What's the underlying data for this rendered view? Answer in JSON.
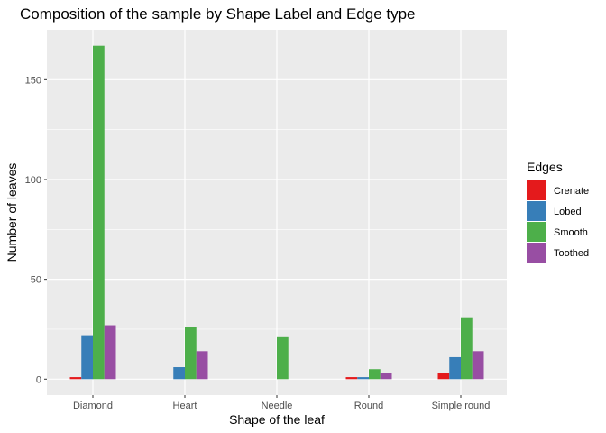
{
  "chart_data": {
    "type": "bar",
    "title": "Composition of the sample by Shape Label and Edge type",
    "xlabel": "Shape of the leaf",
    "ylabel": "Number of leaves",
    "categories": [
      "Diamond",
      "Heart",
      "Needle",
      "Round",
      "Simple round"
    ],
    "series": [
      {
        "name": "Crenate",
        "color": "#E41A1C",
        "values": [
          1,
          0,
          0,
          1,
          3
        ]
      },
      {
        "name": "Lobed",
        "color": "#377EB8",
        "values": [
          22,
          6,
          0,
          1,
          11
        ]
      },
      {
        "name": "Smooth",
        "color": "#4DAF4A",
        "values": [
          167,
          26,
          21,
          5,
          31
        ]
      },
      {
        "name": "Toothed",
        "color": "#984EA3",
        "values": [
          27,
          14,
          0,
          3,
          14
        ]
      }
    ],
    "ylim": [
      -8,
      175
    ],
    "yticks": [
      0,
      50,
      100,
      150
    ],
    "legend": {
      "title": "Edges",
      "position": "right"
    },
    "grid": true
  }
}
